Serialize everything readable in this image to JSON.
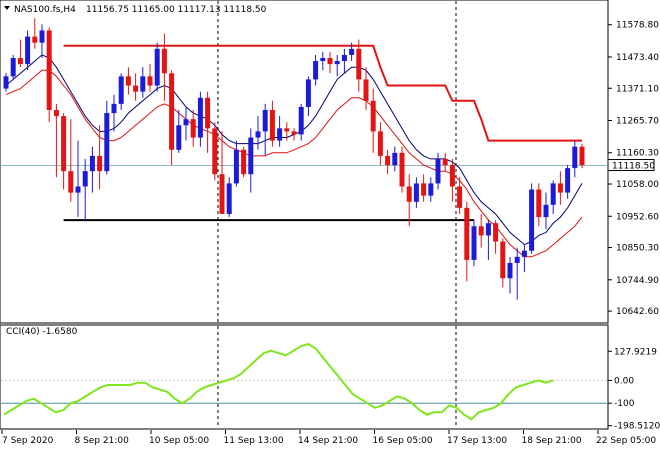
{
  "header": {
    "symbol": "NAS100.fs,H4",
    "ohlc": "11156.75 11165.00 11117.13 11118.50"
  },
  "indicator": {
    "label": "CCI(40) -1.6580"
  },
  "colors": {
    "bull": "#1c1cd8",
    "bear": "#e41414",
    "ma_fast": "#00006e",
    "ma_slow": "#e01010",
    "resistance": "#e41414",
    "support": "#000000",
    "cci": "#7fe61c",
    "price_tag_bg": "#ffffff"
  },
  "chart_data": [
    {
      "type": "candlestick",
      "title": "NAS100.fs,H4",
      "ylim": [
        10620,
        11640
      ],
      "y_ticks": [
        "11578.80",
        "11473.40",
        "11371.10",
        "11265.70",
        "11160.30",
        "11058.00",
        "10952.60",
        "10850.30",
        "10744.90",
        "10642.60"
      ],
      "x_ticks": [
        "7 Sep 2020",
        "8 Sep 21:00",
        "10 Sep 05:00",
        "11 Sep 13:00",
        "14 Sep 21:00",
        "16 Sep 05:00",
        "17 Sep 13:00",
        "18 Sep 21:00",
        "22 Sep 05:00"
      ],
      "current_price": "11118.50",
      "series": [
        {
          "name": "price",
          "candles": [
            [
              11370,
              11420,
              11360,
              11410
            ],
            [
              11410,
              11480,
              11400,
              11470
            ],
            [
              11470,
              11530,
              11440,
              11450
            ],
            [
              11450,
              11560,
              11430,
              11540
            ],
            [
              11540,
              11600,
              11500,
              11520
            ],
            [
              11520,
              11580,
              11470,
              11560
            ],
            [
              11560,
              11570,
              11260,
              11300
            ],
            [
              11300,
              11320,
              11080,
              11280
            ],
            [
              11280,
              11290,
              11040,
              11100
            ],
            [
              11100,
              11270,
              11000,
              11030
            ],
            [
              11030,
              11200,
              10950,
              11050
            ],
            [
              11050,
              11140,
              10940,
              11100
            ],
            [
              11100,
              11180,
              11030,
              11150
            ],
            [
              11150,
              11250,
              11040,
              11100
            ],
            [
              11100,
              11330,
              11090,
              11290
            ],
            [
              11290,
              11350,
              11230,
              11320
            ],
            [
              11320,
              11420,
              11300,
              11410
            ],
            [
              11410,
              11440,
              11350,
              11380
            ],
            [
              11380,
              11420,
              11330,
              11360
            ],
            [
              11360,
              11440,
              11340,
              11410
            ],
            [
              11410,
              11450,
              11360,
              11380
            ],
            [
              11380,
              11520,
              11360,
              11500
            ],
            [
              11500,
              11550,
              11330,
              11420
            ],
            [
              11420,
              11430,
              11120,
              11170
            ],
            [
              11170,
              11300,
              11160,
              11250
            ],
            [
              11250,
              11310,
              11200,
              11270
            ],
            [
              11270,
              11300,
              11180,
              11210
            ],
            [
              11210,
              11360,
              11180,
              11340
            ],
            [
              11340,
              11360,
              11160,
              11240
            ],
            [
              11240,
              11260,
              11070,
              11090
            ],
            [
              11090,
              11230,
              10970,
              10960
            ],
            [
              10960,
              11080,
              10950,
              11060
            ],
            [
              11060,
              11200,
              11050,
              11170
            ],
            [
              11170,
              11180,
              11080,
              11090
            ],
            [
              11090,
              11240,
              11030,
              11210
            ],
            [
              11210,
              11280,
              11170,
              11230
            ],
            [
              11230,
              11320,
              11150,
              11300
            ],
            [
              11300,
              11330,
              11180,
              11200
            ],
            [
              11200,
              11280,
              11180,
              11240
            ],
            [
              11240,
              11260,
              11200,
              11230
            ],
            [
              11230,
              11240,
              11200,
              11220
            ],
            [
              11220,
              11320,
              11200,
              11310
            ],
            [
              11310,
              11410,
              11280,
              11400
            ],
            [
              11400,
              11480,
              11380,
              11460
            ],
            [
              11460,
              11490,
              11430,
              11470
            ],
            [
              11470,
              11490,
              11420,
              11450
            ],
            [
              11450,
              11480,
              11410,
              11460
            ],
            [
              11460,
              11500,
              11420,
              11480
            ],
            [
              11480,
              11520,
              11460,
              11500
            ],
            [
              11500,
              11530,
              11360,
              11400
            ],
            [
              11400,
              11440,
              11300,
              11330
            ],
            [
              11330,
              11370,
              11160,
              11230
            ],
            [
              11230,
              11260,
              11120,
              11150
            ],
            [
              11150,
              11170,
              11090,
              11120
            ],
            [
              11120,
              11180,
              11100,
              11160
            ],
            [
              11160,
              11180,
              11030,
              11050
            ],
            [
              11050,
              11090,
              10920,
              11000
            ],
            [
              11000,
              11080,
              10980,
              11060
            ],
            [
              11060,
              11090,
              11000,
              11020
            ],
            [
              11020,
              11080,
              11000,
              11060
            ],
            [
              11060,
              11160,
              11040,
              11140
            ],
            [
              11140,
              11160,
              11100,
              11120
            ],
            [
              11120,
              11140,
              11000,
              11050
            ],
            [
              11050,
              11080,
              10960,
              10980
            ],
            [
              10980,
              11000,
              10740,
              10810
            ],
            [
              10810,
              10940,
              10790,
              10920
            ],
            [
              10920,
              10960,
              10850,
              10890
            ],
            [
              10890,
              10940,
              10810,
              10930
            ],
            [
              10930,
              10940,
              10830,
              10870
            ],
            [
              10870,
              10880,
              10720,
              10750
            ],
            [
              10750,
              10820,
              10700,
              10800
            ],
            [
              10800,
              10850,
              10680,
              10820
            ],
            [
              10820,
              10860,
              10770,
              10840
            ],
            [
              10840,
              11060,
              10830,
              11040
            ],
            [
              11040,
              11060,
              10920,
              10950
            ],
            [
              10950,
              11030,
              10910,
              10990
            ],
            [
              10990,
              11070,
              10960,
              11060
            ],
            [
              11060,
              11100,
              10990,
              11030
            ],
            [
              11030,
              11120,
              11010,
              11110
            ],
            [
              11110,
              11200,
              11080,
              11180
            ],
            [
              11180,
              11190,
              11110,
              11120
            ]
          ]
        },
        {
          "name": "ma_fast",
          "values": [
            11380,
            11400,
            11420,
            11440,
            11460,
            11480,
            11470,
            11440,
            11400,
            11360,
            11320,
            11280,
            11250,
            11230,
            11230,
            11240,
            11260,
            11290,
            11310,
            11330,
            11350,
            11370,
            11380,
            11370,
            11340,
            11310,
            11290,
            11280,
            11270,
            11250,
            11220,
            11200,
            11190,
            11190,
            11190,
            11190,
            11200,
            11210,
            11210,
            11210,
            11220,
            11230,
            11250,
            11280,
            11320,
            11360,
            11400,
            11420,
            11440,
            11440,
            11430,
            11400,
            11360,
            11320,
            11280,
            11240,
            11200,
            11170,
            11150,
            11140,
            11140,
            11140,
            11130,
            11110,
            11070,
            11030,
            11000,
            10980,
            10960,
            10930,
            10900,
            10880,
            10860,
            10870,
            10890,
            10900,
            10930,
            10950,
            10980,
            11020,
            11060
          ]
        },
        {
          "name": "ma_slow",
          "values": [
            11350,
            11360,
            11370,
            11390,
            11410,
            11430,
            11430,
            11410,
            11380,
            11350,
            11310,
            11270,
            11240,
            11210,
            11200,
            11200,
            11210,
            11230,
            11250,
            11270,
            11290,
            11310,
            11320,
            11310,
            11290,
            11270,
            11250,
            11240,
            11230,
            11220,
            11200,
            11180,
            11170,
            11160,
            11150,
            11150,
            11150,
            11160,
            11160,
            11160,
            11170,
            11180,
            11190,
            11210,
            11240,
            11270,
            11300,
            11320,
            11340,
            11340,
            11330,
            11310,
            11280,
            11250,
            11220,
            11190,
            11160,
            11140,
            11120,
            11110,
            11100,
            11100,
            11090,
            11070,
            11040,
            11000,
            10970,
            10940,
            10920,
            10890,
            10860,
            10840,
            10820,
            10820,
            10830,
            10840,
            10860,
            10880,
            10900,
            10920,
            10950
          ]
        },
        {
          "name": "resistance",
          "values": [
            null,
            null,
            null,
            null,
            null,
            null,
            null,
            null,
            11510,
            11510,
            11510,
            11510,
            11510,
            11510,
            11510,
            11510,
            11510,
            11510,
            11510,
            11510,
            11510,
            11510,
            11510,
            11510,
            11510,
            11510,
            11510,
            11510,
            11510,
            11510,
            11510,
            11510,
            11510,
            11510,
            11510,
            11510,
            11510,
            11510,
            11510,
            11510,
            11510,
            11510,
            11510,
            11510,
            11510,
            11510,
            11510,
            11510,
            11510,
            11510,
            11510,
            11510,
            11440,
            11380,
            11380,
            11380,
            11380,
            11380,
            11380,
            11380,
            11380,
            11380,
            11330,
            11330,
            11330,
            11330,
            11270,
            11200,
            11200,
            11200,
            11200,
            11200,
            11200,
            11200,
            11200,
            11200,
            11200,
            11200,
            11200,
            11200,
            11200
          ]
        },
        {
          "name": "support",
          "values": [
            null,
            null,
            null,
            null,
            null,
            null,
            null,
            null,
            10940,
            10940,
            10940,
            10940,
            10940,
            10940,
            10940,
            10940,
            10940,
            10940,
            10940,
            10940,
            10940,
            10940,
            10940,
            10940,
            10940,
            10940,
            10940,
            10940,
            10940,
            10940,
            10940,
            10940,
            10940,
            10940,
            10940,
            10940,
            10940,
            10940,
            10940,
            10940,
            10940,
            10940,
            10940,
            10940,
            10940,
            10940,
            10940,
            10940,
            10940,
            10940,
            10940,
            10940,
            10940,
            10940,
            10940,
            10940,
            10940,
            10940,
            10940,
            10940,
            10940,
            10940,
            10940,
            10940,
            10940,
            10940,
            null,
            null,
            null,
            null,
            null,
            null,
            null,
            null,
            null,
            null,
            null,
            null,
            null,
            null,
            null
          ]
        }
      ]
    },
    {
      "type": "line",
      "title": "CCI(40) -1.6580",
      "ylim": [
        -200,
        230
      ],
      "y_ticks": [
        "127.9219",
        "0.00",
        "-100",
        "-198.5120"
      ],
      "series": [
        {
          "name": "CCI(40)",
          "values": [
            -150,
            -130,
            -110,
            -90,
            -80,
            -100,
            -120,
            -140,
            -130,
            -100,
            -90,
            -70,
            -50,
            -30,
            -20,
            -20,
            -20,
            -20,
            -10,
            -10,
            -30,
            -40,
            -50,
            -80,
            -100,
            -80,
            -50,
            -30,
            -20,
            -10,
            0,
            10,
            30,
            60,
            90,
            120,
            130,
            120,
            110,
            130,
            150,
            160,
            140,
            100,
            60,
            20,
            -20,
            -60,
            -80,
            -100,
            -120,
            -110,
            -90,
            -70,
            -80,
            -100,
            -130,
            -150,
            -140,
            -140,
            -110,
            -120,
            -150,
            -170,
            -140,
            -130,
            -120,
            -100,
            -60,
            -30,
            -20,
            -10,
            0,
            -10,
            0
          ]
        }
      ]
    }
  ]
}
